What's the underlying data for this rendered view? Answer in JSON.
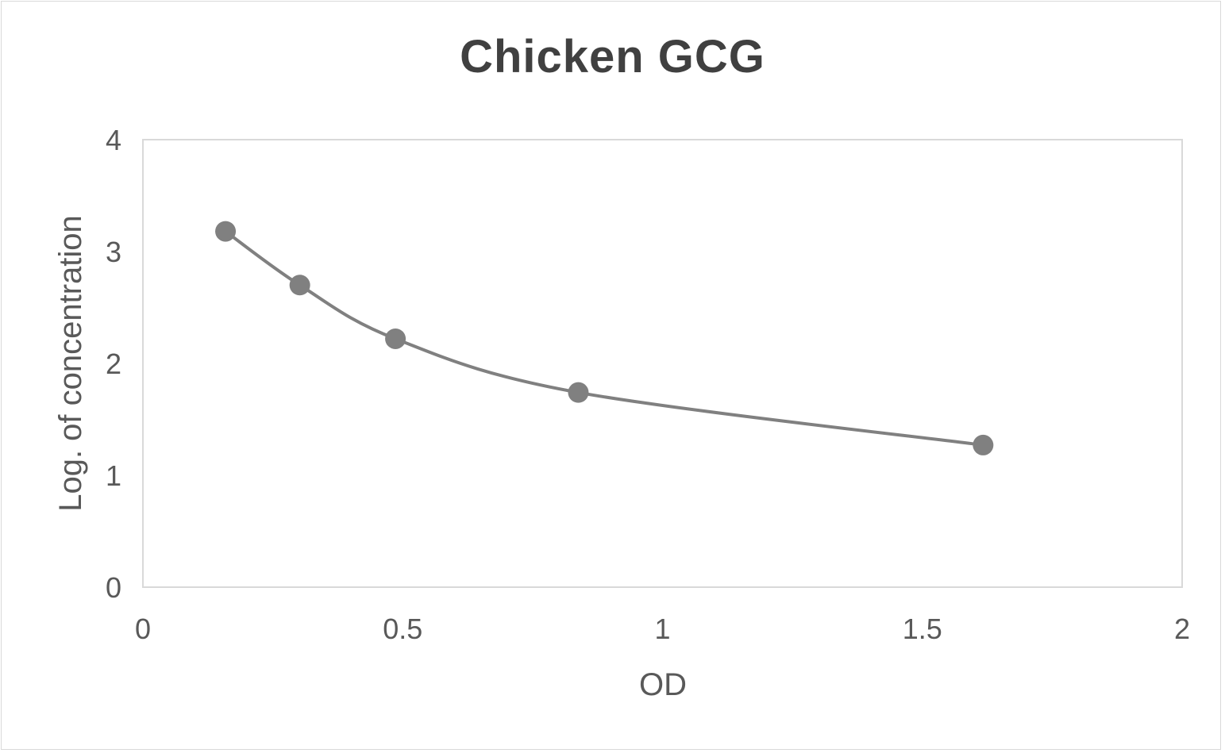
{
  "chart_data": {
    "type": "scatter",
    "title": "Chicken GCG",
    "xlabel": "OD",
    "ylabel": "Log. of concentration",
    "xlim": [
      0,
      2
    ],
    "ylim": [
      0,
      4
    ],
    "xticks": [
      "0",
      "0.5",
      "1",
      "1.5",
      "2"
    ],
    "yticks": [
      "0",
      "1",
      "2",
      "3",
      "4"
    ],
    "grid": false,
    "legend": null,
    "line_style": "smoothed",
    "series": [
      {
        "name": "Chicken GCG",
        "color": "#808080",
        "x": [
          0.159,
          0.302,
          0.486,
          0.838,
          1.617
        ],
        "y": [
          3.18,
          2.7,
          2.22,
          1.74,
          1.27
        ]
      }
    ]
  }
}
